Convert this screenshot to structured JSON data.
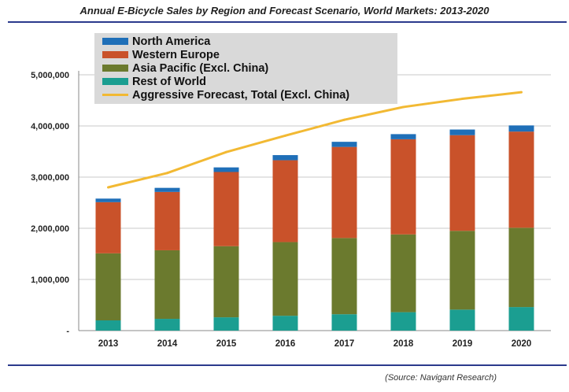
{
  "chart_data": {
    "type": "bar",
    "stacked": true,
    "title": "Annual E-Bicycle Sales by Region and Forecast Scenario, World Markets: 2013-2020",
    "categories": [
      "2013",
      "2014",
      "2015",
      "2016",
      "2017",
      "2018",
      "2019",
      "2020"
    ],
    "ylim": [
      0,
      5000000
    ],
    "yticks": [
      "-",
      "1,000,000",
      "2,000,000",
      "3,000,000",
      "4,000,000",
      "5,000,000"
    ],
    "ytick_values": [
      0,
      1000000,
      2000000,
      3000000,
      4000000,
      5000000
    ],
    "grid": "horizontal",
    "legend_position": "top-left",
    "series": [
      {
        "name": "Rest of World",
        "color": "#1b9e91",
        "values": [
          200000,
          230000,
          260000,
          290000,
          320000,
          360000,
          410000,
          460000
        ]
      },
      {
        "name": "Asia Pacific (Excl. China)",
        "color": "#6b7a2e",
        "values": [
          1310000,
          1340000,
          1390000,
          1440000,
          1490000,
          1520000,
          1540000,
          1550000
        ]
      },
      {
        "name": "Western Europe",
        "color": "#c9522a",
        "values": [
          1000000,
          1140000,
          1450000,
          1600000,
          1780000,
          1860000,
          1870000,
          1880000
        ]
      },
      {
        "name": "North America",
        "color": "#1f6fb8",
        "values": [
          70000,
          80000,
          90000,
          100000,
          100000,
          100000,
          110000,
          120000
        ]
      }
    ],
    "line_series": {
      "name": "Aggressive Forecast, Total (Excl. China)",
      "color": "#f2b933",
      "values": [
        2800000,
        3080000,
        3490000,
        3810000,
        4120000,
        4370000,
        4530000,
        4660000
      ]
    },
    "legend_order": [
      "North America",
      "Western Europe",
      "Asia Pacific (Excl. China)",
      "Rest of World",
      "Aggressive Forecast, Total (Excl. China)"
    ]
  },
  "source_note": "(Source: Navigant Research)"
}
